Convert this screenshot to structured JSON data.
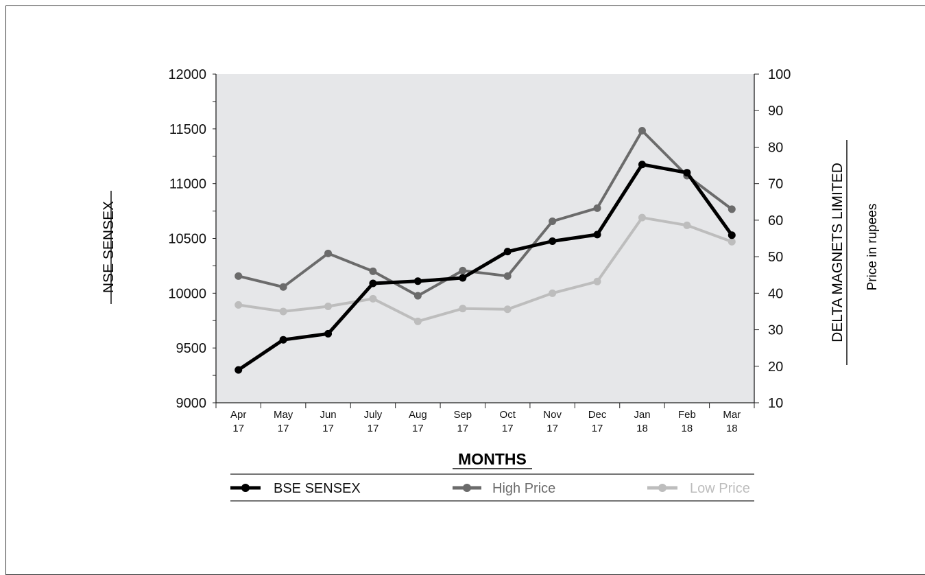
{
  "chart_data": {
    "type": "line",
    "categories": [
      [
        "Apr",
        "17"
      ],
      [
        "May",
        "17"
      ],
      [
        "Jun",
        "17"
      ],
      [
        "July",
        "17"
      ],
      [
        "Aug",
        "17"
      ],
      [
        "Sep",
        "17"
      ],
      [
        "Oct",
        "17"
      ],
      [
        "Nov",
        "17"
      ],
      [
        "Dec",
        "17"
      ],
      [
        "Jan",
        "18"
      ],
      [
        "Feb",
        "18"
      ],
      [
        "Mar",
        "18"
      ]
    ],
    "left_axis": {
      "label": "NSE SENSEX",
      "ticks": [
        "12000",
        "11500",
        "11000",
        "10500",
        "10000",
        "9500",
        "9000"
      ],
      "ylim": [
        9000,
        12000
      ]
    },
    "right_axis": {
      "label": "DELTA MAGNETS LIMITED",
      "sublabel": "Price in rupees",
      "ticks": [
        "100",
        "90",
        "80",
        "70",
        "60",
        "50",
        "40",
        "30",
        "20",
        "10"
      ],
      "ylim": [
        10,
        100
      ]
    },
    "xlabel": "MONTHS",
    "series": [
      {
        "name": "BSE SENSEX",
        "axis": "left",
        "color": "#000000",
        "values": [
          9300,
          9575,
          9630,
          10090,
          10110,
          10140,
          10380,
          10475,
          10535,
          11175,
          11100,
          10530
        ]
      },
      {
        "name": "High Price",
        "axis": "right",
        "color": "#6b6b6b",
        "values": [
          44.7,
          41.7,
          50.9,
          46.0,
          39.3,
          46.2,
          44.7,
          59.7,
          63.3,
          84.5,
          72.2,
          63.0
        ]
      },
      {
        "name": "Low Price",
        "axis": "right",
        "color": "#bdbdbd",
        "values": [
          36.8,
          35.0,
          36.4,
          38.5,
          32.3,
          35.8,
          35.6,
          40.0,
          43.2,
          60.7,
          58.6,
          54.1
        ]
      }
    ],
    "grid": false,
    "legend": "bottom"
  }
}
